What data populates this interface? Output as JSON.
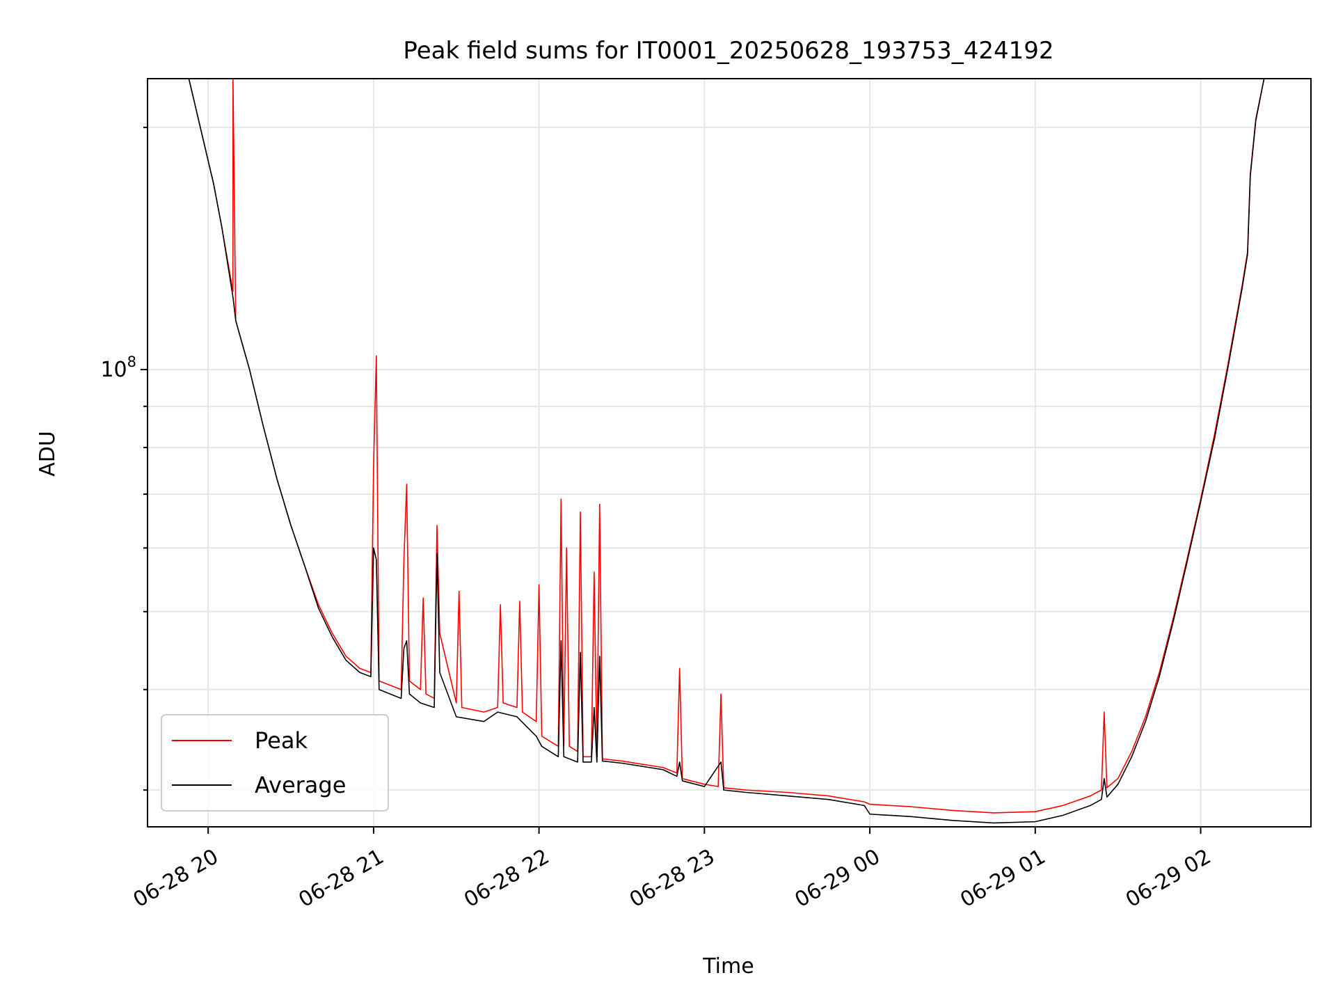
{
  "chart_data": {
    "type": "line",
    "title": "Peak field sums for IT0001_20250628_193753_424192",
    "xlabel": "Time",
    "ylabel": "ADU",
    "yscale": "log",
    "grid": true,
    "legend_position": "lower-left",
    "xlim": [
      "2025-06-28 19:38",
      "2025-06-29 02:40"
    ],
    "ylim": [
      27000000,
      230000000
    ],
    "x_ticks": [
      "2025-06-28 20:00",
      "2025-06-28 21:00",
      "2025-06-28 22:00",
      "2025-06-28 23:00",
      "2025-06-29 00:00",
      "2025-06-29 01:00",
      "2025-06-29 02:00"
    ],
    "x_tick_labels": [
      "06-28 20",
      "06-28 21",
      "06-28 22",
      "06-28 23",
      "06-29 00",
      "06-29 01",
      "06-29 02"
    ],
    "y_major_tick_labels": [
      {
        "value": 100000000,
        "base": "10",
        "exponent": "8"
      }
    ],
    "series": [
      {
        "name": "Peak",
        "color": "#ff0000",
        "points": [
          [
            "2025-06-28 19:53",
            230000000
          ],
          [
            "2025-06-28 20:02",
            170000000
          ],
          [
            "2025-06-28 20:05",
            150000000
          ],
          [
            "2025-06-28 20:09",
            125000000
          ],
          [
            "2025-06-28 20:09",
            230000000
          ],
          [
            "2025-06-28 20:10",
            115000000
          ],
          [
            "2025-06-28 20:15",
            100000000
          ],
          [
            "2025-06-28 20:20",
            85000000
          ],
          [
            "2025-06-28 20:25",
            73000000
          ],
          [
            "2025-06-28 20:30",
            64000000
          ],
          [
            "2025-06-28 20:35",
            57000000
          ],
          [
            "2025-06-28 20:40",
            51000000
          ],
          [
            "2025-06-28 20:45",
            47000000
          ],
          [
            "2025-06-28 20:50",
            44000000
          ],
          [
            "2025-06-28 20:55",
            42500000
          ],
          [
            "2025-06-28 20:59",
            42000000
          ],
          [
            "2025-06-28 21:00",
            76000000
          ],
          [
            "2025-06-28 21:01",
            104000000
          ],
          [
            "2025-06-28 21:02",
            41000000
          ],
          [
            "2025-06-28 21:10",
            40000000
          ],
          [
            "2025-06-28 21:11",
            58000000
          ],
          [
            "2025-06-28 21:12",
            72000000
          ],
          [
            "2025-06-28 21:13",
            41000000
          ],
          [
            "2025-06-28 21:17",
            40000000
          ],
          [
            "2025-06-28 21:18",
            52000000
          ],
          [
            "2025-06-28 21:19",
            39500000
          ],
          [
            "2025-06-28 21:22",
            39000000
          ],
          [
            "2025-06-28 21:23",
            64000000
          ],
          [
            "2025-06-28 21:24",
            47000000
          ],
          [
            "2025-06-28 21:30",
            38500000
          ],
          [
            "2025-06-28 21:31",
            53000000
          ],
          [
            "2025-06-28 21:32",
            38000000
          ],
          [
            "2025-06-28 21:40",
            37500000
          ],
          [
            "2025-06-28 21:45",
            38000000
          ],
          [
            "2025-06-28 21:46",
            51000000
          ],
          [
            "2025-06-28 21:47",
            38500000
          ],
          [
            "2025-06-28 21:52",
            38000000
          ],
          [
            "2025-06-28 21:53",
            51500000
          ],
          [
            "2025-06-28 21:54",
            37500000
          ],
          [
            "2025-06-28 21:59",
            36500000
          ],
          [
            "2025-06-28 22:00",
            54000000
          ],
          [
            "2025-06-28 22:01",
            35000000
          ],
          [
            "2025-06-28 22:07",
            34000000
          ],
          [
            "2025-06-28 22:08",
            69000000
          ],
          [
            "2025-06-28 22:09",
            34000000
          ],
          [
            "2025-06-28 22:10",
            60000000
          ],
          [
            "2025-06-28 22:11",
            34000000
          ],
          [
            "2025-06-28 22:14",
            33500000
          ],
          [
            "2025-06-28 22:15",
            66500000
          ],
          [
            "2025-06-28 22:16",
            33000000
          ],
          [
            "2025-06-28 22:19",
            33000000
          ],
          [
            "2025-06-28 22:20",
            56000000
          ],
          [
            "2025-06-28 22:21",
            33000000
          ],
          [
            "2025-06-28 22:22",
            68000000
          ],
          [
            "2025-06-28 22:23",
            32800000
          ],
          [
            "2025-06-28 22:30",
            32600000
          ],
          [
            "2025-06-28 22:45",
            32000000
          ],
          [
            "2025-06-28 22:50",
            31500000
          ],
          [
            "2025-06-28 22:51",
            42500000
          ],
          [
            "2025-06-28 22:52",
            31000000
          ],
          [
            "2025-06-28 23:00",
            30500000
          ],
          [
            "2025-06-28 23:05",
            30300000
          ],
          [
            "2025-06-28 23:06",
            39500000
          ],
          [
            "2025-06-28 23:07",
            30200000
          ],
          [
            "2025-06-28 23:15",
            30000000
          ],
          [
            "2025-06-28 23:30",
            29800000
          ],
          [
            "2025-06-28 23:45",
            29500000
          ],
          [
            "2025-06-28 23:58",
            29000000
          ],
          [
            "2025-06-29 00:00",
            28800000
          ],
          [
            "2025-06-29 00:15",
            28600000
          ],
          [
            "2025-06-29 00:30",
            28300000
          ],
          [
            "2025-06-29 00:45",
            28100000
          ],
          [
            "2025-06-29 01:00",
            28200000
          ],
          [
            "2025-06-29 01:10",
            28700000
          ],
          [
            "2025-06-29 01:20",
            29500000
          ],
          [
            "2025-06-29 01:24",
            30000000
          ],
          [
            "2025-06-29 01:25",
            37500000
          ],
          [
            "2025-06-29 01:26",
            30200000
          ],
          [
            "2025-06-29 01:30",
            31000000
          ],
          [
            "2025-06-29 01:35",
            33500000
          ],
          [
            "2025-06-29 01:40",
            37000000
          ],
          [
            "2025-06-29 01:45",
            42000000
          ],
          [
            "2025-06-29 01:50",
            49000000
          ],
          [
            "2025-06-29 01:55",
            58000000
          ],
          [
            "2025-06-29 02:00",
            69000000
          ],
          [
            "2025-06-29 02:05",
            83000000
          ],
          [
            "2025-06-29 02:10",
            102000000
          ],
          [
            "2025-06-29 02:15",
            127000000
          ],
          [
            "2025-06-29 02:17",
            140000000
          ],
          [
            "2025-06-29 02:18",
            175000000
          ],
          [
            "2025-06-29 02:20",
            205000000
          ],
          [
            "2025-06-29 02:23",
            230000000
          ]
        ]
      },
      {
        "name": "Average",
        "color": "#000000",
        "points": [
          [
            "2025-06-28 19:53",
            230000000
          ],
          [
            "2025-06-28 20:02",
            170000000
          ],
          [
            "2025-06-28 20:05",
            150000000
          ],
          [
            "2025-06-28 20:09",
            123000000
          ],
          [
            "2025-06-28 20:10",
            115000000
          ],
          [
            "2025-06-28 20:15",
            100000000
          ],
          [
            "2025-06-28 20:20",
            85000000
          ],
          [
            "2025-06-28 20:25",
            73000000
          ],
          [
            "2025-06-28 20:30",
            64000000
          ],
          [
            "2025-06-28 20:35",
            57000000
          ],
          [
            "2025-06-28 20:40",
            50500000
          ],
          [
            "2025-06-28 20:45",
            46500000
          ],
          [
            "2025-06-28 20:50",
            43500000
          ],
          [
            "2025-06-28 20:55",
            42000000
          ],
          [
            "2025-06-28 20:59",
            41500000
          ],
          [
            "2025-06-28 21:00",
            60000000
          ],
          [
            "2025-06-28 21:01",
            58000000
          ],
          [
            "2025-06-28 21:02",
            40000000
          ],
          [
            "2025-06-28 21:10",
            39000000
          ],
          [
            "2025-06-28 21:11",
            45000000
          ],
          [
            "2025-06-28 21:12",
            46000000
          ],
          [
            "2025-06-28 21:13",
            39500000
          ],
          [
            "2025-06-28 21:17",
            38500000
          ],
          [
            "2025-06-28 21:22",
            38000000
          ],
          [
            "2025-06-28 21:23",
            59000000
          ],
          [
            "2025-06-28 21:24",
            42000000
          ],
          [
            "2025-06-28 21:30",
            37000000
          ],
          [
            "2025-06-28 21:40",
            36500000
          ],
          [
            "2025-06-28 21:45",
            37500000
          ],
          [
            "2025-06-28 21:52",
            37000000
          ],
          [
            "2025-06-28 21:59",
            35000000
          ],
          [
            "2025-06-28 22:01",
            34000000
          ],
          [
            "2025-06-28 22:07",
            33000000
          ],
          [
            "2025-06-28 22:08",
            46000000
          ],
          [
            "2025-06-28 22:09",
            33000000
          ],
          [
            "2025-06-28 22:14",
            32500000
          ],
          [
            "2025-06-28 22:15",
            44500000
          ],
          [
            "2025-06-28 22:16",
            32500000
          ],
          [
            "2025-06-28 22:19",
            32500000
          ],
          [
            "2025-06-28 22:20",
            38000000
          ],
          [
            "2025-06-28 22:21",
            32500000
          ],
          [
            "2025-06-28 22:22",
            44000000
          ],
          [
            "2025-06-28 22:23",
            32600000
          ],
          [
            "2025-06-28 22:30",
            32400000
          ],
          [
            "2025-06-28 22:45",
            31800000
          ],
          [
            "2025-06-28 22:50",
            31200000
          ],
          [
            "2025-06-28 22:51",
            32500000
          ],
          [
            "2025-06-28 22:52",
            30800000
          ],
          [
            "2025-06-28 23:00",
            30300000
          ],
          [
            "2025-06-28 23:06",
            32500000
          ],
          [
            "2025-06-28 23:07",
            30000000
          ],
          [
            "2025-06-28 23:15",
            29800000
          ],
          [
            "2025-06-28 23:30",
            29500000
          ],
          [
            "2025-06-28 23:45",
            29200000
          ],
          [
            "2025-06-28 23:58",
            28700000
          ],
          [
            "2025-06-29 00:00",
            28000000
          ],
          [
            "2025-06-29 00:15",
            27800000
          ],
          [
            "2025-06-29 00:30",
            27500000
          ],
          [
            "2025-06-29 00:45",
            27300000
          ],
          [
            "2025-06-29 01:00",
            27400000
          ],
          [
            "2025-06-29 01:10",
            27900000
          ],
          [
            "2025-06-29 01:20",
            28700000
          ],
          [
            "2025-06-29 01:24",
            29200000
          ],
          [
            "2025-06-29 01:25",
            31000000
          ],
          [
            "2025-06-29 01:26",
            29400000
          ],
          [
            "2025-06-29 01:30",
            30500000
          ],
          [
            "2025-06-29 01:35",
            33000000
          ],
          [
            "2025-06-29 01:40",
            36500000
          ],
          [
            "2025-06-29 01:45",
            41500000
          ],
          [
            "2025-06-29 01:50",
            48500000
          ],
          [
            "2025-06-29 01:55",
            57500000
          ],
          [
            "2025-06-29 02:00",
            68500000
          ],
          [
            "2025-06-29 02:05",
            82000000
          ],
          [
            "2025-06-29 02:10",
            101000000
          ],
          [
            "2025-06-29 02:15",
            126000000
          ],
          [
            "2025-06-29 02:17",
            139000000
          ],
          [
            "2025-06-29 02:18",
            174000000
          ],
          [
            "2025-06-29 02:20",
            204000000
          ],
          [
            "2025-06-29 02:23",
            230000000
          ]
        ]
      }
    ]
  }
}
